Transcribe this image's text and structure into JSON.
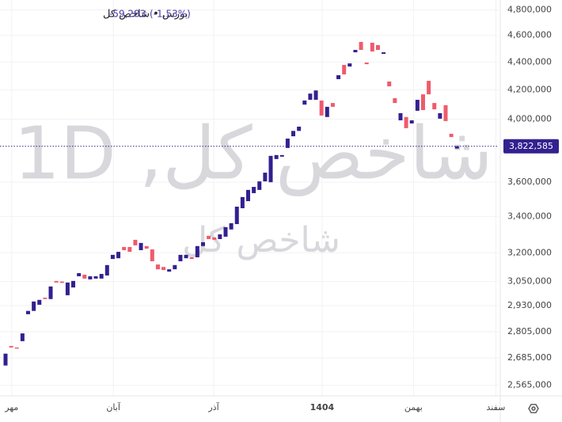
{
  "chart_data": {
    "type": "candlestick",
    "title": "بورس • شاخص کل",
    "change": {
      "value": -59283,
      "label": "-59,283"
    },
    "change_pct": {
      "value": -1.53,
      "label": "(-1.53%)"
    },
    "current_price": {
      "value": 3822585,
      "label": "3,822,585"
    },
    "watermark": "شاخص کل, 1D",
    "watermark_sub": "شاخص کل",
    "log_scale": true,
    "grid": true,
    "up_color": "#33208f",
    "down_color": "#ef5b6b",
    "categories": [
      null,
      null,
      null,
      null,
      null,
      null,
      null,
      null,
      null,
      null,
      null,
      null,
      null,
      null,
      null,
      null,
      null,
      null,
      null,
      null,
      null,
      null,
      null,
      null,
      null,
      null,
      null,
      null,
      null,
      null,
      null,
      null,
      null,
      null,
      null,
      null,
      null,
      null,
      null,
      null,
      null,
      null,
      null,
      null,
      null,
      null,
      null,
      null,
      null,
      null,
      null,
      null,
      null,
      null,
      null,
      null,
      null,
      null,
      null,
      null,
      null,
      null,
      null,
      null,
      null,
      null,
      null,
      null,
      null,
      null,
      null,
      null,
      null,
      null,
      null,
      null,
      null,
      null,
      null,
      null,
      null
    ],
    "open": [
      2651000,
      2739000,
      2732000,
      2761000,
      2888000,
      2904000,
      2934000,
      2969000,
      2962000,
      3053000,
      3050000,
      2981000,
      3020000,
      3077000,
      3085000,
      3061000,
      3065000,
      3065000,
      3081000,
      3167000,
      3171000,
      3231000,
      3231000,
      3270000,
      3214000,
      3236000,
      3218000,
      3138000,
      3125000,
      3101000,
      3113000,
      3155000,
      3171000,
      3176000,
      3176000,
      3236000,
      3292000,
      3283000,
      3274000,
      3287000,
      3327000,
      3357000,
      3447000,
      3488000,
      3535000,
      3554000,
      3605000,
      3600000,
      3742000,
      3757000,
      3812000,
      3887000,
      3922000,
      4098000,
      4131000,
      4131000,
      4126000,
      4014000,
      4109000,
      4276000,
      4379000,
      4367000,
      4472000,
      4550000,
      4396000,
      4544000,
      4526000,
      4460000,
      4259000,
      4142000,
      3992000,
      4014000,
      3971000,
      4056000,
      4169000,
      4264000,
      4109000,
      4003000,
      4094000,
      3903000,
      3808000
    ],
    "close": [
      2704000,
      2732000,
      2728000,
      2797000,
      2904000,
      2950000,
      2958000,
      2962000,
      3025000,
      3045000,
      3043000,
      3045000,
      3053000,
      3093000,
      3065000,
      3077000,
      3077000,
      3089000,
      3135000,
      3189000,
      3205000,
      3214000,
      3205000,
      3240000,
      3253000,
      3222000,
      3155000,
      3113000,
      3109000,
      3113000,
      3135000,
      3189000,
      3189000,
      3167000,
      3236000,
      3257000,
      3274000,
      3270000,
      3300000,
      3340000,
      3362000,
      3456000,
      3512000,
      3554000,
      3572000,
      3605000,
      3658000,
      3762000,
      3767000,
      3767000,
      3872000,
      3922000,
      3950000,
      4126000,
      4174000,
      4196000,
      4024000,
      4083000,
      4083000,
      4304000,
      4310000,
      4390000,
      4490000,
      4490000,
      4384000,
      4478000,
      4490000,
      4472000,
      4225000,
      4109000,
      4040000,
      3940000,
      3992000,
      4131000,
      4061000,
      4169000,
      4066000,
      4040000,
      3987000,
      3881868,
      3822585
    ],
    "ylim": [
      2520000,
      4880000
    ],
    "yticks": [
      {
        "value": 2565000,
        "label": "2,565,000"
      },
      {
        "value": 2685000,
        "label": "2,685,000"
      },
      {
        "value": 2805000,
        "label": "2,805,000"
      },
      {
        "value": 2930000,
        "label": "2,930,000"
      },
      {
        "value": 3050000,
        "label": "3,050,000"
      },
      {
        "value": 3200000,
        "label": "3,200,000"
      },
      {
        "value": 3400000,
        "label": "3,400,000"
      },
      {
        "value": 3600000,
        "label": "3,600,000"
      },
      {
        "value": 4000000,
        "label": "4,000,000"
      },
      {
        "value": 4200000,
        "label": "4,200,000"
      },
      {
        "value": 4400000,
        "label": "4,400,000"
      },
      {
        "value": 4600000,
        "label": "4,600,000"
      },
      {
        "value": 4800000,
        "label": "4,800,000"
      }
    ],
    "xlim": [
      -0.98,
      87.4
    ],
    "xticks": [
      {
        "value": 1.1,
        "label": "مهر"
      },
      {
        "value": 19.1,
        "label": "آبان"
      },
      {
        "value": 36.9,
        "label": "آذر"
      },
      {
        "value": 56.1,
        "label": "1404"
      },
      {
        "value": 72.3,
        "label": "بهمن"
      },
      {
        "value": 86.9,
        "label": "سفند"
      }
    ]
  }
}
